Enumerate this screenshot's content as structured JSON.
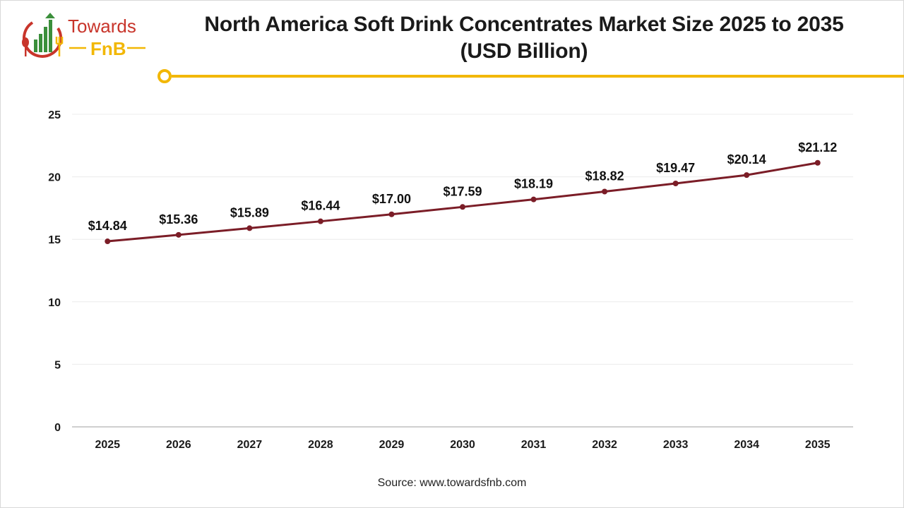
{
  "header": {
    "logo_word_1": "Towards",
    "logo_word_2": "FnB",
    "title_line_1": "North America Soft Drink Concentrates Market Size 2025 to 2035",
    "title_line_2": "(USD Billion)",
    "accent_color": "#f2b705",
    "logo_red": "#c8352b",
    "logo_green": "#3b8f3b"
  },
  "chart_data": {
    "type": "line",
    "title": "North America Soft Drink Concentrates Market Size 2025 to 2035 (USD Billion)",
    "xlabel": "",
    "ylabel": "",
    "categories": [
      "2025",
      "2026",
      "2027",
      "2028",
      "2029",
      "2030",
      "2031",
      "2032",
      "2033",
      "2034",
      "2035"
    ],
    "values": [
      14.84,
      15.36,
      15.89,
      16.44,
      17.0,
      17.59,
      18.19,
      18.82,
      19.47,
      20.14,
      21.12
    ],
    "data_labels": [
      "$14.84",
      "$15.36",
      "$15.89",
      "$16.44",
      "$17.00",
      "$17.59",
      "$18.19",
      "$18.82",
      "$19.47",
      "$20.14",
      "$21.12"
    ],
    "ylim": [
      0,
      25
    ],
    "yticks": [
      "0",
      "5",
      "10",
      "15",
      "20",
      "25"
    ],
    "grid": true,
    "line_color": "#7b1d27"
  },
  "footer": {
    "source": "Source: www.towardsfnb.com"
  }
}
